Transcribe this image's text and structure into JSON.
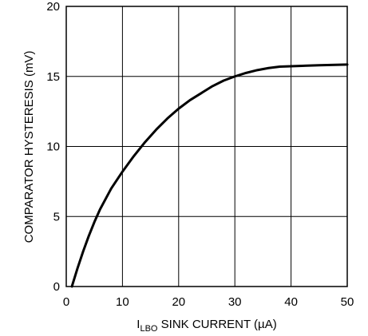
{
  "chart_data": {
    "type": "line",
    "title": "",
    "xlabel": {
      "main": "I",
      "subscript": "LBO",
      "rest": " SINK CURRENT (µA)"
    },
    "ylabel": "COMPARATOR HYSTERESIS (mV)",
    "xlim": [
      0,
      50
    ],
    "ylim": [
      0,
      20
    ],
    "xticks": [
      0,
      10,
      20,
      30,
      40,
      50
    ],
    "yticks": [
      0,
      5,
      10,
      15,
      20
    ],
    "grid": true,
    "series": [
      {
        "color": "#000000",
        "x": [
          1,
          2,
          3,
          4,
          5,
          6,
          8,
          10,
          12,
          14,
          16,
          18,
          20,
          22,
          24,
          26,
          28,
          30,
          32,
          34,
          36,
          38,
          40,
          45,
          50
        ],
        "y": [
          0,
          1.3,
          2.5,
          3.6,
          4.6,
          5.5,
          7.0,
          8.2,
          9.3,
          10.3,
          11.2,
          12.0,
          12.7,
          13.3,
          13.8,
          14.3,
          14.7,
          15.0,
          15.25,
          15.45,
          15.6,
          15.7,
          15.73,
          15.8,
          15.85
        ]
      }
    ]
  }
}
